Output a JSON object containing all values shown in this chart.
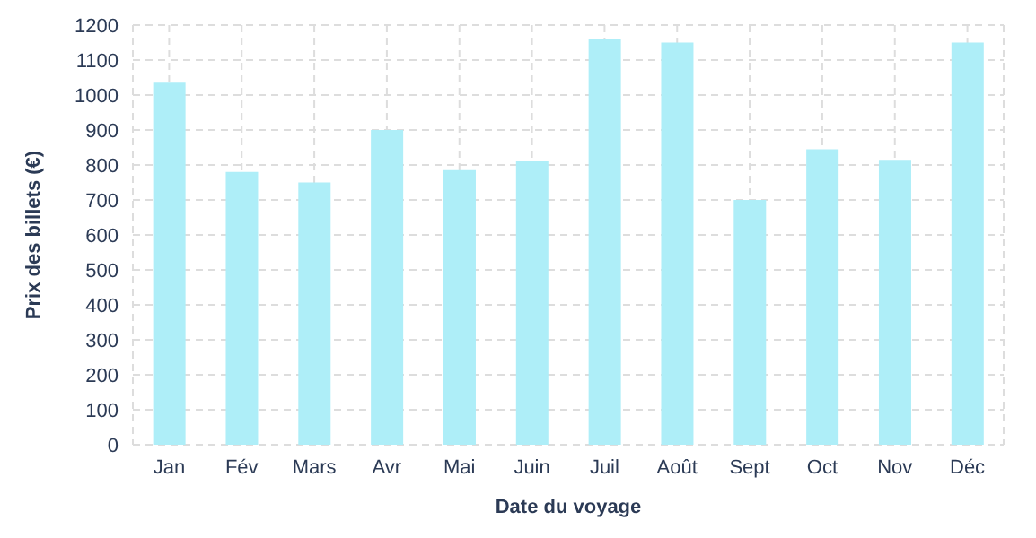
{
  "chart_data": {
    "type": "bar",
    "xlabel": "Date du voyage",
    "ylabel": "Prix des billets (€)",
    "categories": [
      "Jan",
      "Fév",
      "Mars",
      "Avr",
      "Mai",
      "Juin",
      "Juil",
      "Août",
      "Sept",
      "Oct",
      "Nov",
      "Déc"
    ],
    "values": [
      1035,
      780,
      750,
      900,
      785,
      810,
      1160,
      1150,
      700,
      845,
      815,
      1150
    ],
    "color": "#aeeef8",
    "ylim": [
      0,
      1200
    ],
    "yticks": [
      0,
      100,
      200,
      300,
      400,
      500,
      600,
      700,
      800,
      900,
      1000,
      1100,
      1200
    ],
    "grid": true
  }
}
